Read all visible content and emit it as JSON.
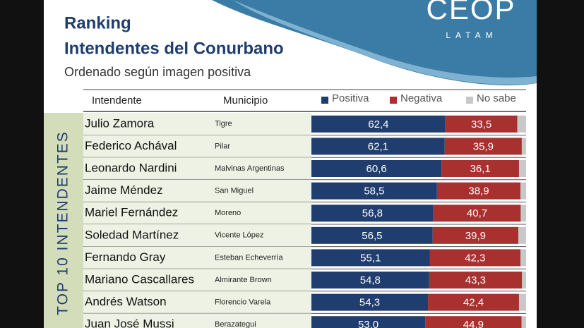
{
  "logo": {
    "name": "CEOP",
    "tagline": "LATAM"
  },
  "chart_data": {
    "type": "bar",
    "orientation": "horizontal",
    "stacked": true,
    "title": "Ranking",
    "subtitle": "Intendentes del Conurbano",
    "note": "Ordenado según imagen positiva",
    "column_headers": [
      "Intendente",
      "Municipio"
    ],
    "side_label": "TOP 10 INTENDENTES",
    "categories": [
      "Julio Zamora",
      "Federico Achával",
      "Leonardo Nardini",
      "Jaime Méndez",
      "Mariel Fernández",
      "Soledad Martínez",
      "Fernando Gray",
      "Mariano Cascallares",
      "Andrés Watson",
      "Juan José Mussi"
    ],
    "municipalities": [
      "Tigre",
      "Pilar",
      "Malvinas Argentinas",
      "San Miguel",
      "Moreno",
      "Vicente López",
      "Esteban Echeverría",
      "Almirante Brown",
      "Florencio Varela",
      "Berazategui"
    ],
    "xlim": [
      0,
      100
    ],
    "series": [
      {
        "name": "Positiva",
        "color": "#1f3d6e",
        "values": [
          62.4,
          62.1,
          60.6,
          58.5,
          56.8,
          56.5,
          55.1,
          54.8,
          54.3,
          53.0
        ],
        "value_labels": [
          "62,4",
          "62,1",
          "60,6",
          "58,5",
          "56,8",
          "56,5",
          "55,1",
          "54,8",
          "54,3",
          "53,0"
        ]
      },
      {
        "name": "Negativa",
        "color": "#a8302f",
        "values": [
          33.5,
          35.9,
          36.1,
          38.9,
          40.7,
          39.9,
          42.3,
          43.3,
          42.4,
          44.9
        ],
        "value_labels": [
          "33,5",
          "35,9",
          "36,1",
          "38,9",
          "40,7",
          "39,9",
          "42,3",
          "43,3",
          "42,4",
          "44,9"
        ]
      },
      {
        "name": "No sabe",
        "color": "#c8c8c8",
        "values": [
          4.1,
          2.0,
          3.3,
          2.6,
          2.5,
          3.6,
          2.6,
          1.9,
          3.3,
          2.1
        ]
      }
    ]
  }
}
